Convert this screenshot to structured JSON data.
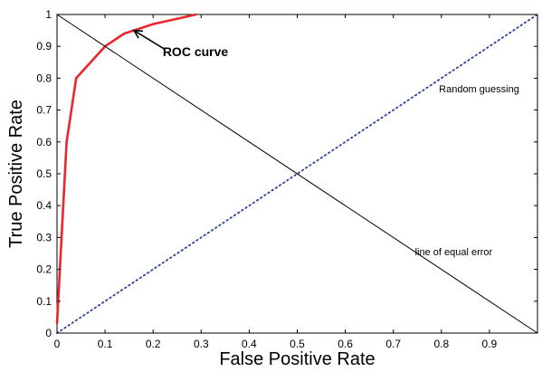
{
  "chart_data": {
    "type": "line",
    "title": "",
    "xlabel": "False Positive Rate",
    "ylabel": "True Positive Rate",
    "xlim": [
      0,
      1
    ],
    "ylim": [
      0,
      1
    ],
    "grid": false,
    "x_ticks": [
      "0",
      "0.1",
      "0.2",
      "0.3",
      "0.4",
      "0.5",
      "0.6",
      "0.7",
      "0.8",
      "0.9"
    ],
    "y_ticks": [
      "0",
      "0.1",
      "0.2",
      "0.3",
      "0.4",
      "0.5",
      "0.6",
      "0.7",
      "0.8",
      "0.9",
      "1"
    ],
    "series": [
      {
        "key": "roc",
        "color": "#e8262d",
        "style": "solid",
        "x": [
          0.0,
          0.02,
          0.04,
          0.1,
          0.14,
          0.2,
          0.29
        ],
        "y": [
          0.03,
          0.6,
          0.8,
          0.9,
          0.94,
          0.97,
          1.0
        ]
      },
      {
        "key": "random",
        "color": "#2b3f9e",
        "style": "dotted",
        "x": [
          0.0,
          1.0
        ],
        "y": [
          0.0,
          1.0
        ]
      },
      {
        "key": "equal-error",
        "color": "#000000",
        "style": "solid",
        "x": [
          0.0,
          1.0
        ],
        "y": [
          1.0,
          0.0
        ]
      }
    ],
    "annotations": {
      "roc_label": "ROC curve",
      "roc_label_pos": [
        0.22,
        0.87
      ],
      "roc_arrow_from": [
        0.225,
        0.89
      ],
      "roc_arrow_to": [
        0.16,
        0.95
      ],
      "random_label": "Random guessing",
      "random_label_pos": [
        0.795,
        0.755
      ],
      "equal_error_label": "line of equal error",
      "equal_error_label_pos": [
        0.745,
        0.245
      ]
    }
  }
}
